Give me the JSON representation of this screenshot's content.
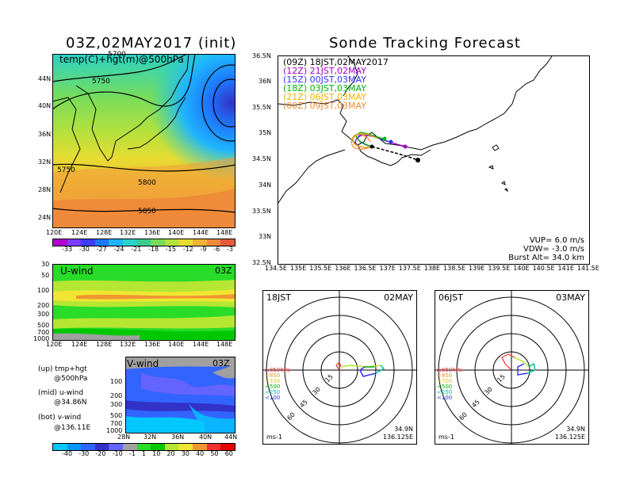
{
  "init_title": "03Z,02MAY2017 (init)",
  "main_title": "Sonde Tracking Forecast",
  "map500": {
    "label": "temp(C)+hgt(m)@500hPa",
    "contours": [
      "5700",
      "5750",
      "5750",
      "5800",
      "5850"
    ],
    "lat_ticks": [
      "44N",
      "40N",
      "36N",
      "32N",
      "28N",
      "24N"
    ],
    "lon_ticks": [
      "120E",
      "124E",
      "128E",
      "132E",
      "136E",
      "140E",
      "144E",
      "148E"
    ],
    "colorbar_ticks": [
      "-33",
      "-30",
      "-27",
      "-24",
      "-21",
      "-18",
      "-15",
      "-12",
      "-9",
      "-6",
      "-3"
    ],
    "colorbar_colors": [
      "#b000d0",
      "#7a3cff",
      "#3c3cff",
      "#1e78ff",
      "#1eb4ff",
      "#28d2c8",
      "#3ccc8c",
      "#78dc5a",
      "#b4e13c",
      "#e6dc32",
      "#f0b432",
      "#f08c3c",
      "#e65a3c"
    ]
  },
  "uwind": {
    "label": "U-wind",
    "time": "03Z",
    "p_ticks": [
      "30",
      "50",
      "100",
      "200",
      "300",
      "500",
      "700",
      "1000"
    ],
    "lon_ticks": [
      "120E",
      "124E",
      "128E",
      "132E",
      "136E",
      "140E",
      "144E",
      "148E"
    ]
  },
  "vwind": {
    "label": "V-wind",
    "time": "03Z",
    "p_ticks": [
      "100",
      "200",
      "300",
      "500",
      "700",
      "1000"
    ],
    "lat_ticks": [
      "28N",
      "32N",
      "36N",
      "40N",
      "44N"
    ]
  },
  "legend_text": {
    "l1": "(up) tmp+hgt",
    "l2": "@500hPa",
    "l3": "(mid) u-wind",
    "l4": "@34.86N",
    "l5": "(bot) v-wind",
    "l6": "@136.11E"
  },
  "wind_colorbar": {
    "ticks": [
      "-40",
      "-30",
      "-20",
      "-10",
      "-1",
      "1",
      "10",
      "20",
      "30",
      "40",
      "50",
      "60"
    ],
    "colors": [
      "#00c8ff",
      "#0096ff",
      "#3264ff",
      "#3232c8",
      "#6464ff",
      "#a0a0a0",
      "#28dc28",
      "#00c800",
      "#b4e632",
      "#f0e632",
      "#f09632",
      "#f03232",
      "#e60000"
    ]
  },
  "track_map": {
    "lat_ticks": [
      "36.5N",
      "36N",
      "35.5N",
      "35N",
      "34.5N",
      "34N",
      "33.5N",
      "33N",
      "32.5N"
    ],
    "lon_ticks": [
      "134.5E",
      "135E",
      "135.5E",
      "136E",
      "136.5E",
      "137E",
      "137.5E",
      "138E",
      "138.5E",
      "139E",
      "139.5E",
      "140E",
      "140.5E",
      "141E",
      "141.5E"
    ],
    "legend": [
      {
        "text": "(09Z)  18JST,02MAY2017",
        "color": "#000000"
      },
      {
        "text": "(12Z)  21JST,02MAY",
        "color": "#a000c8"
      },
      {
        "text": "(15Z)  00JST,03MAY",
        "color": "#3232ff"
      },
      {
        "text": "(18Z)  03JST,03MAY",
        "color": "#00b400"
      },
      {
        "text": "(21Z)  06JST,03MAY",
        "color": "#f0b400"
      },
      {
        "text": "(00Z)  09JST,03MAY",
        "color": "#f08c32"
      }
    ],
    "vup": "VUP=  6.0  m/s",
    "vdw": "VDW= -3.0  m/s",
    "burst": "Burst Alt=  34.0  km"
  },
  "hodo_left": {
    "time": "18JST",
    "date": "02MAY",
    "rings": [
      "15",
      "30",
      "45",
      "60"
    ],
    "levels": [
      "≥850hPa",
      "<850",
      "<700",
      "<500",
      "<250",
      "<100"
    ],
    "unit": "ms-1",
    "lat": "34.9N",
    "lon": "136.125E"
  },
  "hodo_right": {
    "time": "06JST",
    "date": "03MAY",
    "rings": [
      "15",
      "30",
      "45",
      "60"
    ],
    "levels": [
      "≥850hPa",
      "<850",
      "<700",
      "<500",
      "<250",
      "<100"
    ],
    "unit": "ms-1",
    "lat": "34.9N",
    "lon": "136.125E"
  }
}
